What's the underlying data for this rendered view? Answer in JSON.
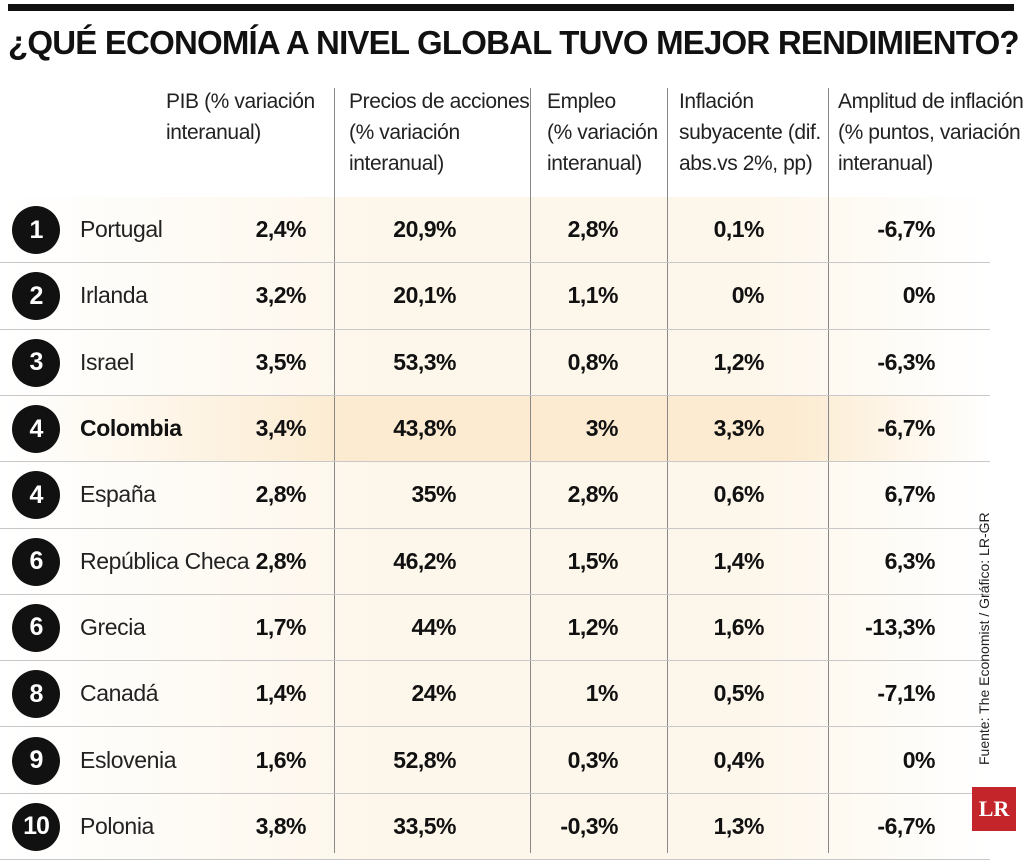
{
  "title": "¿QUÉ ECONOMÍA A NIVEL GLOBAL TUVO MEJOR RENDIMIENTO?",
  "source": "Fuente: The Economist / Gráfico: LR-GR",
  "logo": "LR",
  "colors": {
    "highlight": "#fcebd0",
    "stripe": "#fdf6ea",
    "badge": "#111111",
    "logo": "#c3252b"
  },
  "chart_data": {
    "type": "table",
    "title": "¿QUÉ ECONOMÍA A NIVEL GLOBAL TUVO MEJOR RENDIMIENTO?",
    "columns": [
      {
        "key": "pib",
        "lines": [
          "PIB (% variación",
          "interanual)"
        ]
      },
      {
        "key": "acciones",
        "lines": [
          "Precios de acciones",
          "(% variación",
          "interanual)"
        ]
      },
      {
        "key": "empleo",
        "lines": [
          "Empleo",
          "(% variación",
          "interanual)"
        ]
      },
      {
        "key": "inflacion",
        "lines": [
          "Inflación",
          "subyacente (dif.",
          "abs.vs 2%, pp)"
        ]
      },
      {
        "key": "amplitud",
        "lines": [
          "Amplitud de inflación",
          "(% puntos, variación",
          "interanual)"
        ]
      }
    ],
    "rows": [
      {
        "rank": "1",
        "country": "Portugal",
        "values": [
          "2,4%",
          "20,9%",
          "2,8%",
          "0,1%",
          "-6,7%"
        ]
      },
      {
        "rank": "2",
        "country": "Irlanda",
        "values": [
          "3,2%",
          "20,1%",
          "1,1%",
          "0%",
          "0%"
        ]
      },
      {
        "rank": "3",
        "country": "Israel",
        "values": [
          "3,5%",
          "53,3%",
          "0,8%",
          "1,2%",
          "-6,3%"
        ]
      },
      {
        "rank": "4",
        "country": "Colombia",
        "highlight": true,
        "values": [
          "3,4%",
          "43,8%",
          "3%",
          "3,3%",
          "-6,7%"
        ]
      },
      {
        "rank": "4",
        "country": "España",
        "values": [
          "2,8%",
          "35%",
          "2,8%",
          "0,6%",
          "6,7%"
        ]
      },
      {
        "rank": "6",
        "country": "República Checa",
        "values": [
          "2,8%",
          "46,2%",
          "1,5%",
          "1,4%",
          "6,3%"
        ]
      },
      {
        "rank": "6",
        "country": "Grecia",
        "values": [
          "1,7%",
          "44%",
          "1,2%",
          "1,6%",
          "-13,3%"
        ]
      },
      {
        "rank": "8",
        "country": "Canadá",
        "values": [
          "1,4%",
          "24%",
          "1%",
          "0,5%",
          "-7,1%"
        ]
      },
      {
        "rank": "9",
        "country": "Eslovenia",
        "values": [
          "1,6%",
          "52,8%",
          "0,3%",
          "0,4%",
          "0%"
        ]
      },
      {
        "rank": "10",
        "country": "Polonia",
        "values": [
          "3,8%",
          "33,5%",
          "-0,3%",
          "1,3%",
          "-6,7%"
        ]
      }
    ]
  }
}
